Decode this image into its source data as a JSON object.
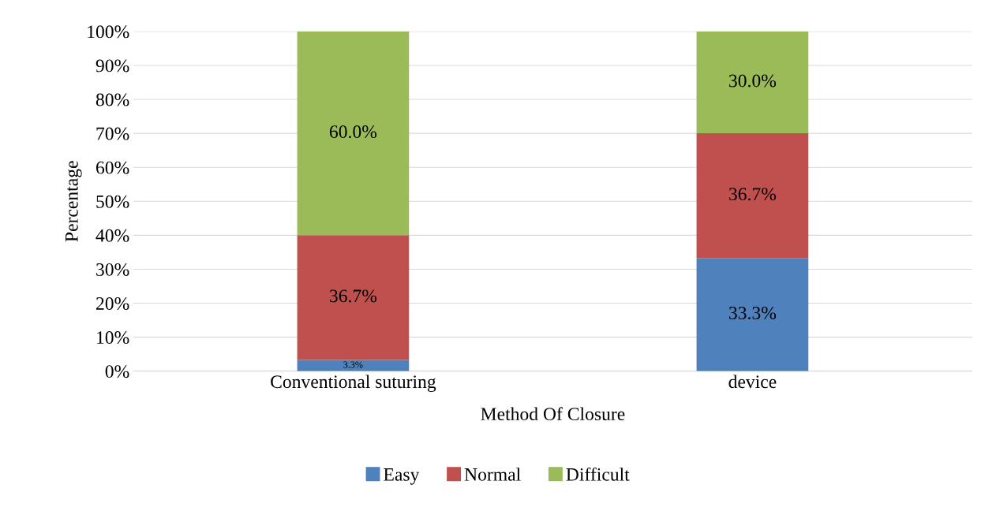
{
  "chart_data": {
    "type": "bar",
    "stacked": true,
    "xlabel": "Method Of Closure",
    "ylabel": "Percentage",
    "categories": [
      "Conventional suturing",
      "device"
    ],
    "series": [
      {
        "name": "Easy",
        "color": "#4f81bd",
        "values": [
          3.3,
          33.3
        ],
        "value_labels": [
          "3.3%",
          "33.3%"
        ]
      },
      {
        "name": "Normal",
        "color": "#c0504d",
        "values": [
          36.7,
          36.7
        ],
        "value_labels": [
          "36.7%",
          "36.7%"
        ]
      },
      {
        "name": "Difficult",
        "color": "#9bbb59",
        "values": [
          60.0,
          30.0
        ],
        "value_labels": [
          "60.0%",
          "30.0%"
        ]
      }
    ],
    "ylim": [
      0,
      100
    ],
    "yticks": [
      {
        "value": 0,
        "label": "0%"
      },
      {
        "value": 10,
        "label": "10%"
      },
      {
        "value": 20,
        "label": "20%"
      },
      {
        "value": 30,
        "label": "30%"
      },
      {
        "value": 40,
        "label": "40%"
      },
      {
        "value": 50,
        "label": "50%"
      },
      {
        "value": 60,
        "label": "60%"
      },
      {
        "value": 70,
        "label": "70%"
      },
      {
        "value": 80,
        "label": "80%"
      },
      {
        "value": 90,
        "label": "90%"
      },
      {
        "value": 100,
        "label": "100%"
      }
    ],
    "grid": "y",
    "legend": "bottom"
  }
}
